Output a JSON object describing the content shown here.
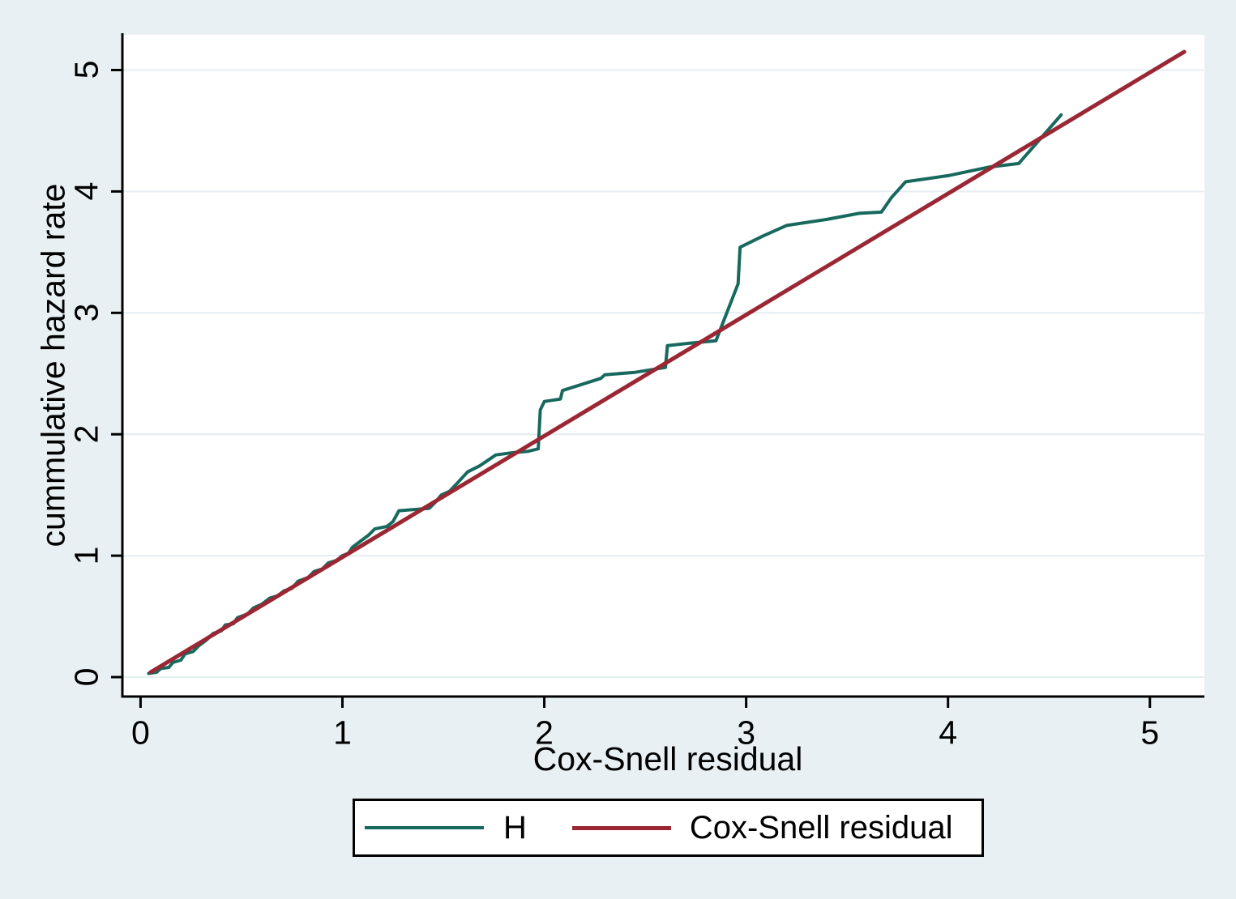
{
  "figure": {
    "background": "#e9f0f3",
    "plot_background": "#ffffff",
    "grid_color": "#e4eef1",
    "axis_color": "#000000",
    "text_color": "#000000"
  },
  "chart_data": {
    "type": "line",
    "title": "",
    "xlabel": "Cox-Snell residual",
    "ylabel": "cummulative hazard rate",
    "xlim": [
      -0.09,
      5.27
    ],
    "ylim": [
      -0.16,
      5.29
    ],
    "xticks": [
      0,
      1,
      2,
      3,
      4,
      5
    ],
    "yticks": [
      0,
      1,
      2,
      3,
      4,
      5
    ],
    "grid": "horizontal-only",
    "legend_position": "bottom-center",
    "series": [
      {
        "name": "H",
        "color": "#17695e",
        "width": 4,
        "points": [
          [
            0.04,
            0.03
          ],
          [
            0.08,
            0.04
          ],
          [
            0.1,
            0.07
          ],
          [
            0.14,
            0.08
          ],
          [
            0.16,
            0.12
          ],
          [
            0.2,
            0.14
          ],
          [
            0.22,
            0.19
          ],
          [
            0.26,
            0.21
          ],
          [
            0.29,
            0.26
          ],
          [
            0.33,
            0.31
          ],
          [
            0.36,
            0.36
          ],
          [
            0.4,
            0.38
          ],
          [
            0.42,
            0.43
          ],
          [
            0.46,
            0.44
          ],
          [
            0.48,
            0.49
          ],
          [
            0.53,
            0.52
          ],
          [
            0.56,
            0.57
          ],
          [
            0.6,
            0.6
          ],
          [
            0.64,
            0.65
          ],
          [
            0.68,
            0.67
          ],
          [
            0.71,
            0.71
          ],
          [
            0.75,
            0.73
          ],
          [
            0.78,
            0.79
          ],
          [
            0.83,
            0.82
          ],
          [
            0.86,
            0.87
          ],
          [
            0.9,
            0.89
          ],
          [
            0.93,
            0.94
          ],
          [
            0.97,
            0.96
          ],
          [
            1.0,
            1.0
          ],
          [
            1.03,
            1.02
          ],
          [
            1.05,
            1.07
          ],
          [
            1.09,
            1.12
          ],
          [
            1.13,
            1.17
          ],
          [
            1.16,
            1.22
          ],
          [
            1.22,
            1.24
          ],
          [
            1.25,
            1.28
          ],
          [
            1.28,
            1.37
          ],
          [
            1.43,
            1.39
          ],
          [
            1.46,
            1.44
          ],
          [
            1.49,
            1.5
          ],
          [
            1.53,
            1.53
          ],
          [
            1.57,
            1.6
          ],
          [
            1.62,
            1.69
          ],
          [
            1.68,
            1.74
          ],
          [
            1.76,
            1.83
          ],
          [
            1.85,
            1.85
          ],
          [
            1.92,
            1.86
          ],
          [
            1.97,
            1.88
          ],
          [
            1.98,
            2.2
          ],
          [
            2.0,
            2.27
          ],
          [
            2.08,
            2.29
          ],
          [
            2.09,
            2.36
          ],
          [
            2.28,
            2.46
          ],
          [
            2.3,
            2.49
          ],
          [
            2.45,
            2.51
          ],
          [
            2.6,
            2.55
          ],
          [
            2.61,
            2.73
          ],
          [
            2.72,
            2.75
          ],
          [
            2.85,
            2.77
          ],
          [
            2.96,
            3.24
          ],
          [
            2.97,
            3.54
          ],
          [
            3.08,
            3.63
          ],
          [
            3.2,
            3.72
          ],
          [
            3.4,
            3.77
          ],
          [
            3.56,
            3.82
          ],
          [
            3.67,
            3.83
          ],
          [
            3.72,
            3.95
          ],
          [
            3.79,
            4.08
          ],
          [
            4.0,
            4.13
          ],
          [
            4.2,
            4.2
          ],
          [
            4.35,
            4.23
          ],
          [
            4.45,
            4.42
          ],
          [
            4.56,
            4.63
          ]
        ]
      },
      {
        "name": "Cox-Snell residual",
        "color": "#9a2733",
        "width": 5,
        "points": [
          [
            0.05,
            0.04
          ],
          [
            5.17,
            5.15
          ]
        ]
      }
    ]
  },
  "legend": {
    "items": [
      {
        "label": "H",
        "color": "#17695e"
      },
      {
        "label": "Cox-Snell residual",
        "color": "#9a2733"
      }
    ]
  }
}
